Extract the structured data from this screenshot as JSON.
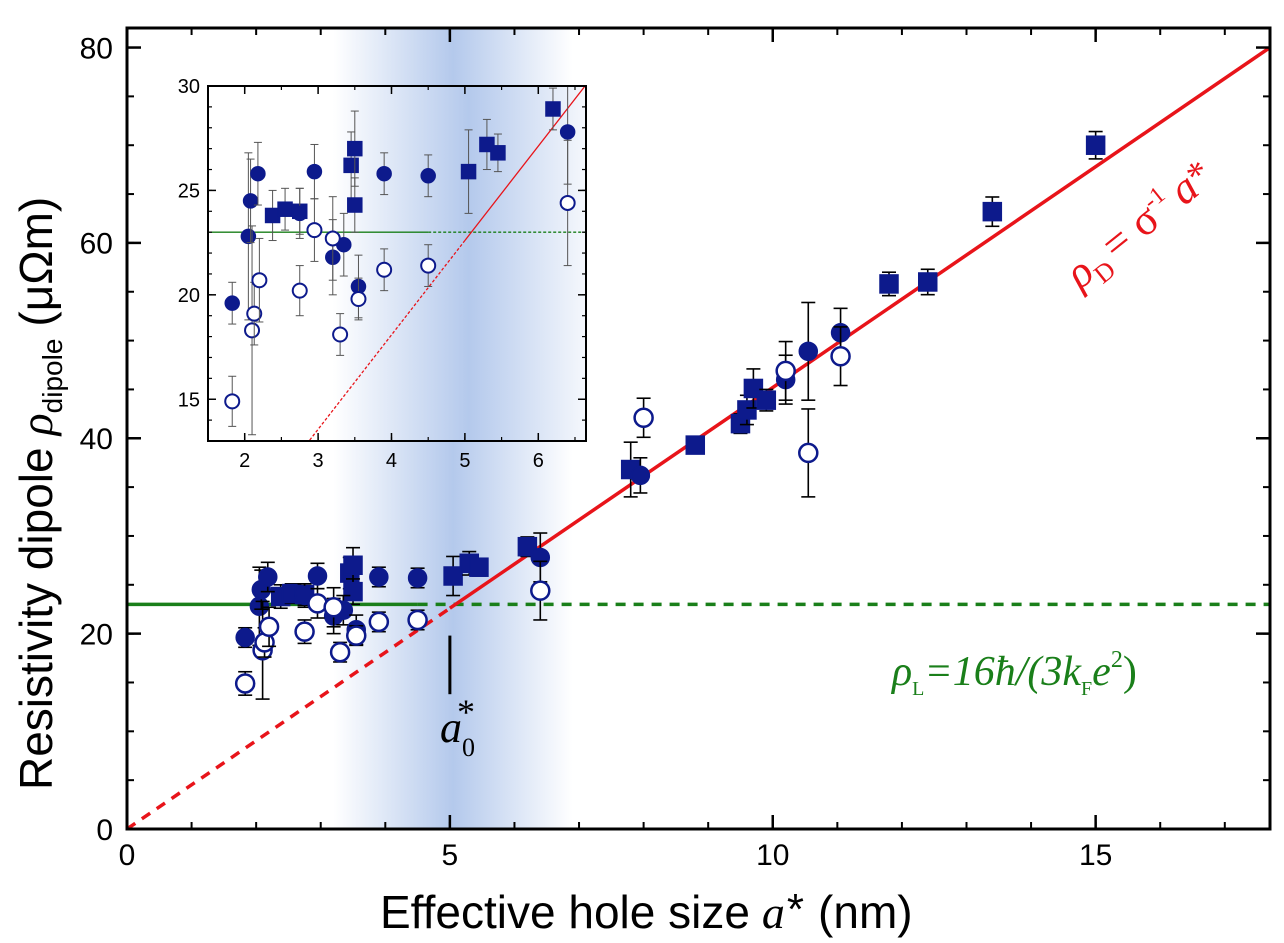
{
  "chart_data": {
    "type": "scatter",
    "title": "",
    "xlabel": "Effective hole size",
    "xlabel_symbol": "a",
    "xlabel_star": "*",
    "xlabel_unit": "(nm)",
    "ylabel": "Resistivity dipole",
    "ylabel_symbol": "ρ",
    "ylabel_sub": "dipole",
    "ylabel_unit": "(μΩm)",
    "xlim": [
      0,
      17.7
    ],
    "ylim": [
      0,
      82
    ],
    "xticks": [
      0,
      5,
      10,
      15
    ],
    "yticks": [
      0,
      20,
      40,
      60,
      80
    ],
    "xtick_labels": [
      "0",
      "5",
      "10",
      "15"
    ],
    "ytick_labels": [
      "0",
      "20",
      "40",
      "60",
      "80"
    ],
    "shaded_band": {
      "x_from": 3.2,
      "x_center": 5.0,
      "x_to": 6.9,
      "color": "#b4c9ec"
    },
    "dipole_line": {
      "slope": 4.52,
      "x_solid_from": 5.0,
      "color": "#e8141a",
      "label": {
        "rho": "ρ",
        "sub": "D",
        "eq": "= σ",
        "sup": "-1",
        "a": "a",
        "star": "*"
      }
    },
    "landauer_line": {
      "y": 23.0,
      "x_solid_to": 4.5,
      "color": "#1a7f1a",
      "label": {
        "rho": "ρ",
        "sub": "L",
        "eq": "=16ħ/(3k",
        "ksub": "F",
        "e": "e",
        "sup": "2",
        "close": ")"
      }
    },
    "a0_marker": {
      "x": 5.0,
      "y_from": 13.8,
      "y_to": 19.8,
      "label": "a",
      "label_sub": "0",
      "label_star": "*"
    },
    "series": [
      {
        "name": "filled squares",
        "marker": "square",
        "fill": "#0d1a8c",
        "points": [
          {
            "x": 2.38,
            "y": 23.8,
            "err": 1.2
          },
          {
            "x": 2.55,
            "y": 24.1,
            "err": 1.0
          },
          {
            "x": 2.75,
            "y": 24.0,
            "err": 1.1
          },
          {
            "x": 3.45,
            "y": 26.2,
            "err": 1.6
          },
          {
            "x": 3.5,
            "y": 27.0,
            "err": 1.8
          },
          {
            "x": 3.5,
            "y": 24.3,
            "err": 1.3
          },
          {
            "x": 5.05,
            "y": 25.9,
            "err": 2.0
          },
          {
            "x": 5.3,
            "y": 27.2,
            "err": 1.2
          },
          {
            "x": 5.45,
            "y": 26.8,
            "err": 0.9
          },
          {
            "x": 6.2,
            "y": 28.9,
            "err": 1.0
          },
          {
            "x": 7.8,
            "y": 36.8,
            "err": 2.8
          },
          {
            "x": 8.8,
            "y": 39.3,
            "err": 0.7
          },
          {
            "x": 9.5,
            "y": 41.5,
            "err": 1.0
          },
          {
            "x": 9.6,
            "y": 42.9,
            "err": 1.5
          },
          {
            "x": 9.7,
            "y": 45.1,
            "err": 2.0
          },
          {
            "x": 9.9,
            "y": 43.9,
            "err": 1.1
          },
          {
            "x": 11.8,
            "y": 55.8,
            "err": 1.2
          },
          {
            "x": 12.4,
            "y": 56.0,
            "err": 1.3
          },
          {
            "x": 13.4,
            "y": 63.2,
            "err": 1.5
          },
          {
            "x": 15.0,
            "y": 70.0,
            "err": 1.4
          }
        ]
      },
      {
        "name": "filled circles",
        "marker": "circle",
        "fill": "#0d1a8c",
        "points": [
          {
            "x": 1.83,
            "y": 19.6,
            "err": 1.0
          },
          {
            "x": 2.05,
            "y": 22.8,
            "err": 4.0
          },
          {
            "x": 2.08,
            "y": 24.5,
            "err": 2.0
          },
          {
            "x": 2.18,
            "y": 25.8,
            "err": 1.5
          },
          {
            "x": 2.75,
            "y": 23.9,
            "err": 1.2
          },
          {
            "x": 2.95,
            "y": 25.9,
            "err": 1.3
          },
          {
            "x": 3.2,
            "y": 21.8,
            "err": 1.8
          },
          {
            "x": 3.35,
            "y": 22.4,
            "err": 1.5
          },
          {
            "x": 3.55,
            "y": 20.4,
            "err": 1.5
          },
          {
            "x": 3.9,
            "y": 25.8,
            "err": 1.0
          },
          {
            "x": 4.5,
            "y": 25.7,
            "err": 1.0
          },
          {
            "x": 6.4,
            "y": 27.8,
            "err": 2.5
          },
          {
            "x": 7.95,
            "y": 36.2,
            "err": 1.8
          },
          {
            "x": 10.2,
            "y": 46.0,
            "err": 2.5
          },
          {
            "x": 10.55,
            "y": 48.9,
            "err": 5.0
          },
          {
            "x": 11.05,
            "y": 50.8,
            "err": 2.5
          }
        ]
      },
      {
        "name": "open circles",
        "marker": "circle",
        "fill": "#ffffff",
        "points": [
          {
            "x": 1.83,
            "y": 14.9,
            "err": 1.2
          },
          {
            "x": 2.1,
            "y": 18.3,
            "err": 5.0
          },
          {
            "x": 2.13,
            "y": 19.1,
            "err": 1.5
          },
          {
            "x": 2.2,
            "y": 20.7,
            "err": 2.0
          },
          {
            "x": 2.75,
            "y": 20.2,
            "err": 1.2
          },
          {
            "x": 2.95,
            "y": 23.1,
            "err": 1.5
          },
          {
            "x": 3.2,
            "y": 22.7,
            "err": 2.0
          },
          {
            "x": 3.3,
            "y": 18.1,
            "err": 1.0
          },
          {
            "x": 3.55,
            "y": 19.8,
            "err": 1.0
          },
          {
            "x": 3.9,
            "y": 21.2,
            "err": 1.0
          },
          {
            "x": 4.5,
            "y": 21.4,
            "err": 1.0
          },
          {
            "x": 6.4,
            "y": 24.4,
            "err": 3.0
          },
          {
            "x": 8.0,
            "y": 42.1,
            "err": 2.0
          },
          {
            "x": 10.2,
            "y": 46.9,
            "err": 3.0
          },
          {
            "x": 10.55,
            "y": 38.5,
            "err": 4.5
          },
          {
            "x": 11.05,
            "y": 48.4,
            "err": 3.0
          }
        ]
      }
    ],
    "inset": {
      "xlim": [
        1.5,
        6.65
      ],
      "ylim": [
        13,
        30
      ],
      "xticks": [
        2,
        3,
        4,
        5,
        6
      ],
      "yticks": [
        15,
        20,
        25,
        30
      ],
      "xtick_labels": [
        "2",
        "3",
        "4",
        "5",
        "6"
      ],
      "ytick_labels": [
        "15",
        "20",
        "25",
        "30"
      ],
      "shows_series": [
        "filled squares",
        "filled circles",
        "open circles"
      ],
      "x_max_shown": 6.6
    }
  }
}
